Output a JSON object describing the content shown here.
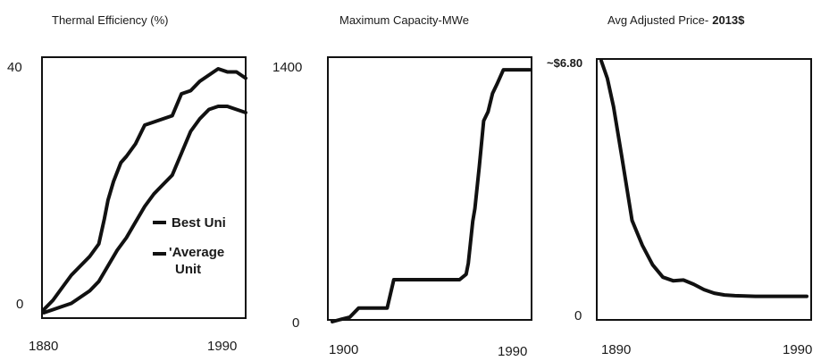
{
  "colors": {
    "line": "#111111",
    "frame": "#111111",
    "text": "#1a1a1a",
    "background": "#ffffff"
  },
  "chart_data": [
    {
      "type": "line",
      "title": "Thermal Efficiency (%)",
      "x_tick_labels": [
        "1880",
        "1990"
      ],
      "y_tick_labels": [
        "40",
        "0"
      ],
      "xlim": [
        1880,
        1990
      ],
      "ylim": [
        0,
        40
      ],
      "grid": false,
      "legend": "right",
      "series": [
        {
          "name": "Best Unit",
          "legend_label": "Best Uni",
          "x": [
            1880,
            1885,
            1890,
            1895,
            1900,
            1905,
            1910,
            1913,
            1915,
            1918,
            1922,
            1925,
            1930,
            1935,
            1940,
            1945,
            1950,
            1955,
            1960,
            1965,
            1970,
            1975,
            1980,
            1985,
            1990
          ],
          "y": [
            0.5,
            2,
            4,
            6,
            7.5,
            9,
            11,
            15,
            18,
            21,
            24,
            25,
            27,
            30,
            30.5,
            31,
            31.5,
            35,
            35.5,
            37,
            38,
            39,
            38.5,
            38.5,
            37.5
          ]
        },
        {
          "name": "Average Unit",
          "legend_label": [
            "'Average",
            "Unit"
          ],
          "x": [
            1880,
            1885,
            1890,
            1895,
            1900,
            1905,
            1910,
            1915,
            1920,
            1925,
            1930,
            1935,
            1940,
            1945,
            1950,
            1955,
            1960,
            1965,
            1970,
            1975,
            1980,
            1985,
            1990
          ],
          "y": [
            0,
            0.5,
            1,
            1.5,
            2.5,
            3.5,
            5,
            7.5,
            10,
            12,
            14.5,
            17,
            19,
            20.5,
            22,
            25.5,
            29,
            31,
            32.5,
            33,
            33,
            32.5,
            32
          ]
        }
      ]
    },
    {
      "type": "line",
      "title": "Maximum Capacity-MWe",
      "x_tick_labels": [
        "1900",
        "1990"
      ],
      "y_tick_labels": [
        "1400",
        "0"
      ],
      "xlim": [
        1900,
        1990
      ],
      "ylim": [
        0,
        1400
      ],
      "grid": false,
      "series": [
        {
          "x": [
            1900,
            1903,
            1908,
            1912,
            1920,
            1925,
            1928,
            1932,
            1938,
            1943,
            1950,
            1955,
            1958,
            1961,
            1962,
            1964,
            1965,
            1967,
            1969,
            1971,
            1973,
            1975,
            1978,
            1980,
            1985,
            1990
          ],
          "y": [
            0,
            10,
            25,
            75,
            75,
            75,
            230,
            230,
            230,
            230,
            230,
            230,
            230,
            260,
            320,
            550,
            620,
            850,
            1100,
            1150,
            1250,
            1300,
            1380,
            1380,
            1380,
            1380
          ]
        }
      ]
    },
    {
      "type": "line",
      "title": "Avg Adjusted Price- 2013$",
      "title_parts": [
        "Avg Adjusted Price-",
        "2013$"
      ],
      "x_tick_labels": [
        "1890",
        "1990"
      ],
      "y_tick_labels": [
        "~$6.80",
        "0"
      ],
      "xlim": [
        1890,
        1990
      ],
      "ylim": [
        0,
        6.8
      ],
      "grid": false,
      "series": [
        {
          "x": [
            1890,
            1893,
            1896,
            1900,
            1905,
            1910,
            1915,
            1920,
            1925,
            1930,
            1935,
            1940,
            1945,
            1950,
            1955,
            1960,
            1965,
            1970,
            1975,
            1980,
            1990
          ],
          "y": [
            6.8,
            6.3,
            5.5,
            4.1,
            2.3,
            1.6,
            1.05,
            0.7,
            0.6,
            0.62,
            0.5,
            0.35,
            0.25,
            0.2,
            0.18,
            0.17,
            0.16,
            0.16,
            0.16,
            0.16,
            0.16
          ]
        }
      ]
    }
  ]
}
